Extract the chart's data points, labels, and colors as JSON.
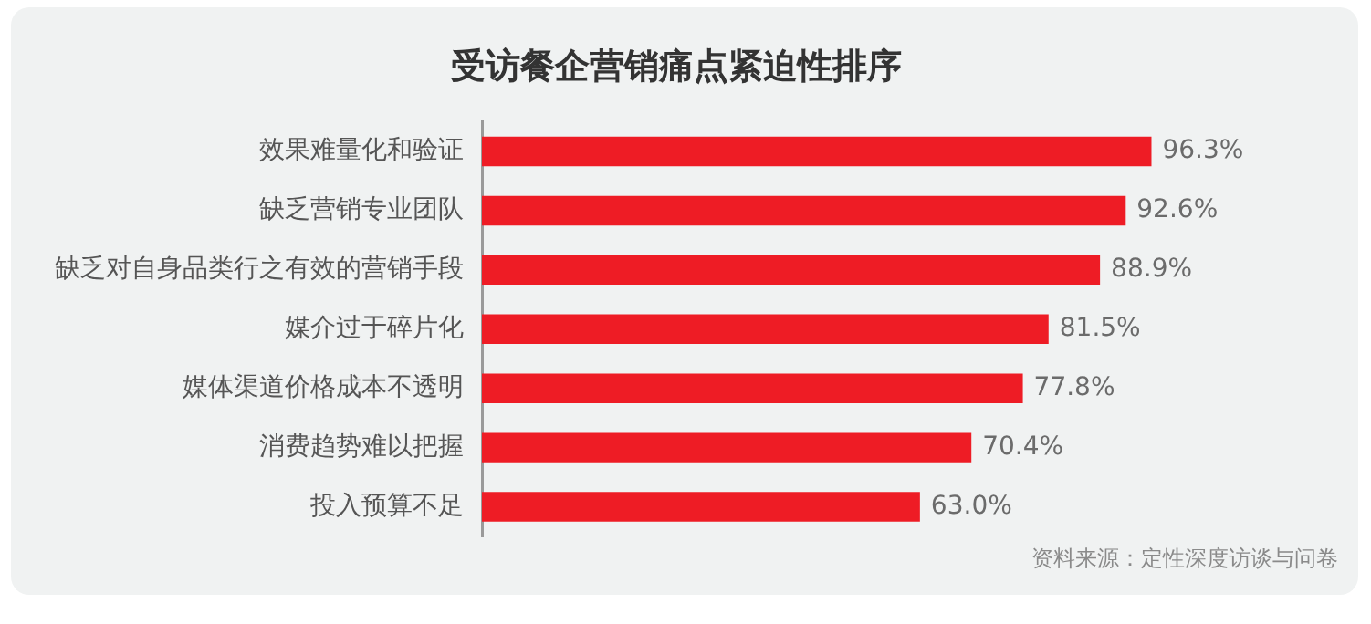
{
  "chart_data": {
    "type": "bar",
    "orientation": "horizontal",
    "title": "受访餐企营销痛点紧迫性排序",
    "categories": [
      "效果难量化和验证",
      "缺乏营销专业团队",
      "缺乏对自身品类行之有效的营销手段",
      "媒介过于碎片化",
      "媒体渠道价格成本不透明",
      "消费趋势难以把握",
      "投入预算不足"
    ],
    "values": [
      96.3,
      92.6,
      88.9,
      81.5,
      77.8,
      70.4,
      63.0
    ],
    "value_labels": [
      "96.3%",
      "92.6%",
      "88.9%",
      "81.5%",
      "77.8%",
      "70.4%",
      "63.0%"
    ],
    "color": "#ee1c25",
    "grid": false,
    "legend": false,
    "tick_labels": "y",
    "annotations": [
      "资料来源：定性深度访谈与问卷"
    ]
  }
}
